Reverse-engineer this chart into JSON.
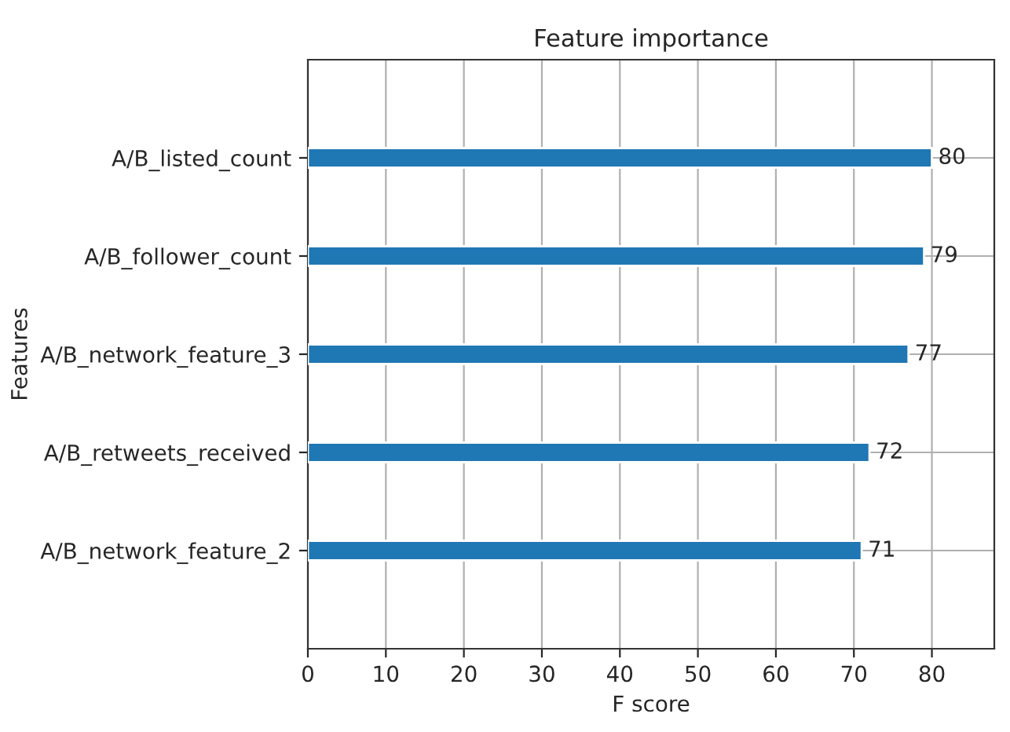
{
  "chart_data": {
    "type": "bar",
    "orientation": "horizontal",
    "title": "Feature importance",
    "xlabel": "F score",
    "ylabel": "Features",
    "categories": [
      "A/B_listed_count",
      "A/B_follower_count",
      "A/B_network_feature_3",
      "A/B_retweets_received",
      "A/B_network_feature_2"
    ],
    "values": [
      80,
      79,
      77,
      72,
      71
    ],
    "color": "#1f77b4",
    "xlim": [
      0,
      88
    ],
    "xticks": [
      0,
      10,
      20,
      30,
      40,
      50,
      60,
      70,
      80
    ],
    "grid": true,
    "data_labels": true
  }
}
